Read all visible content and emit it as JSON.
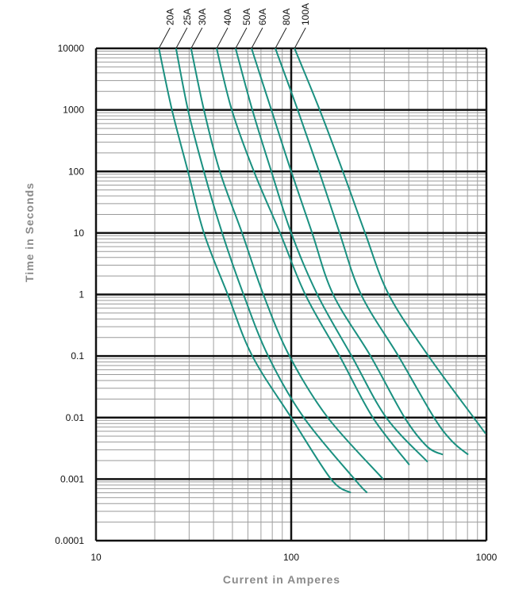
{
  "chart_data": {
    "type": "line",
    "title": "",
    "xlabel": "Current in Amperes",
    "ylabel": "Time in Seconds",
    "x_scale": "log",
    "y_scale": "log",
    "xlim": [
      10,
      1000
    ],
    "ylim": [
      0.0001,
      10000
    ],
    "x_ticks": [
      "10",
      "100",
      "1000"
    ],
    "y_ticks": [
      "10000",
      "1000",
      "100",
      "10",
      "1",
      "0.1",
      "0.01",
      "0.001",
      "0.0001"
    ],
    "grid": true,
    "line_color": "#1a9080",
    "series": [
      {
        "name": "20A",
        "points": [
          [
            21,
            10000
          ],
          [
            24.5,
            1000
          ],
          [
            29.6,
            100
          ],
          [
            35.7,
            10
          ],
          [
            47.3,
            1
          ],
          [
            63.2,
            0.1
          ],
          [
            100,
            0.01
          ],
          [
            160,
            0.001
          ],
          [
            202,
            0.0006
          ]
        ]
      },
      {
        "name": "25A",
        "points": [
          [
            25.7,
            10000
          ],
          [
            29.6,
            1000
          ],
          [
            35.7,
            100
          ],
          [
            44.3,
            10
          ],
          [
            57,
            1
          ],
          [
            76.2,
            0.1
          ],
          [
            116,
            0.01
          ],
          [
            211,
            0.001
          ],
          [
            245,
            0.0006
          ]
        ]
      },
      {
        "name": "30A",
        "points": [
          [
            30.7,
            10000
          ],
          [
            35.7,
            1000
          ],
          [
            43.1,
            100
          ],
          [
            56,
            10
          ],
          [
            72,
            1
          ],
          [
            98,
            0.1
          ],
          [
            154,
            0.01
          ],
          [
            296,
            0.001
          ]
        ]
      },
      {
        "name": "40A",
        "points": [
          [
            41.5,
            10000
          ],
          [
            49.6,
            1000
          ],
          [
            64.4,
            100
          ],
          [
            87.7,
            10
          ],
          [
            118,
            1
          ],
          [
            177,
            0.1
          ],
          [
            262,
            0.01
          ],
          [
            403,
            0.0017
          ]
        ]
      },
      {
        "name": "50A",
        "points": [
          [
            51.9,
            10000
          ],
          [
            63.2,
            1000
          ],
          [
            79.1,
            100
          ],
          [
            100,
            10
          ],
          [
            136,
            1
          ],
          [
            204,
            0.1
          ],
          [
            307,
            0.01
          ],
          [
            500,
            0.0019
          ]
        ]
      },
      {
        "name": "60A",
        "points": [
          [
            62.6,
            10000
          ],
          [
            79.1,
            1000
          ],
          [
            100,
            100
          ],
          [
            128,
            10
          ],
          [
            164,
            1
          ],
          [
            255,
            0.1
          ],
          [
            381,
            0.01
          ],
          [
            496,
            0.0034
          ],
          [
            598,
            0.0025
          ]
        ]
      },
      {
        "name": "80A",
        "points": [
          [
            82.9,
            10000
          ],
          [
            108,
            1000
          ],
          [
            139,
            100
          ],
          [
            177,
            10
          ],
          [
            228,
            1
          ],
          [
            354,
            0.1
          ],
          [
            539,
            0.01
          ],
          [
            668,
            0.0041
          ],
          [
            807,
            0.0025
          ]
        ]
      },
      {
        "name": "100A",
        "points": [
          [
            104,
            10000
          ],
          [
            140,
            1000
          ],
          [
            184,
            100
          ],
          [
            239,
            10
          ],
          [
            316,
            1
          ],
          [
            505,
            0.1
          ],
          [
            861,
            0.01
          ],
          [
            990,
            0.0055
          ]
        ]
      }
    ]
  }
}
